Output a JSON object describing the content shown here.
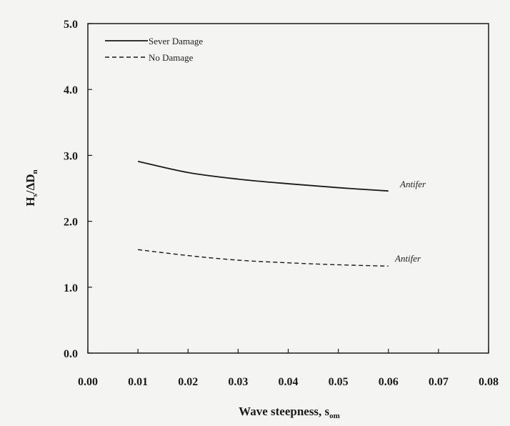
{
  "chart_data": {
    "type": "line",
    "xlabel": "Wave steepness, s",
    "xlabel_sub": "om",
    "ylabel": "H",
    "ylabel_sub1": "s",
    "ylabel_mid": "/ΔD",
    "ylabel_sub2": "n",
    "xlim": [
      0.0,
      0.08
    ],
    "ylim": [
      0.0,
      5.0
    ],
    "x_ticks": [
      "0.00",
      "0.01",
      "0.02",
      "0.03",
      "0.04",
      "0.05",
      "0.06",
      "0.07",
      "0.08"
    ],
    "y_ticks": [
      "0.0",
      "1.0",
      "2.0",
      "3.0",
      "4.0",
      "5.0"
    ],
    "grid": false,
    "legend_position": "top-left",
    "series": [
      {
        "name": "Sever Damage",
        "style": "solid",
        "x": [
          0.01,
          0.02,
          0.03,
          0.04,
          0.05,
          0.06
        ],
        "y": [
          2.91,
          2.74,
          2.64,
          2.57,
          2.51,
          2.46
        ],
        "annotation": "Antifer"
      },
      {
        "name": "No Damage",
        "style": "dashed",
        "x": [
          0.01,
          0.02,
          0.03,
          0.04,
          0.05,
          0.06
        ],
        "y": [
          1.57,
          1.48,
          1.41,
          1.37,
          1.34,
          1.32
        ],
        "annotation": "Antifer"
      }
    ]
  }
}
